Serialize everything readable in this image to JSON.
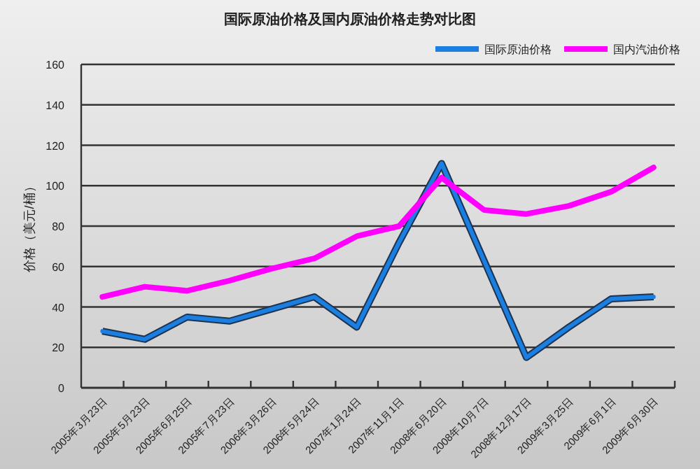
{
  "chart_data": {
    "type": "line",
    "title": "国际原油价格及国内原油价格走势对比图",
    "ylabel": "价格（美元/桶）",
    "categories": [
      "2005年3月23日",
      "2005年5月23日",
      "2005年6月25日",
      "2005年7月23日",
      "2006年3月26日",
      "2006年5月24日",
      "2007年1月24日",
      "2007年11月1日",
      "2008年6月20日",
      "2008年10月7日",
      "2008年12月17日",
      "2009年3月25日",
      "2009年6月1日",
      "2009年6月30日"
    ],
    "series": [
      {
        "name": "国际原油价格",
        "color": "#1a7fe0",
        "values": [
          28,
          24,
          35,
          33,
          39,
          45,
          30,
          72,
          111,
          63,
          15,
          30,
          44,
          45
        ]
      },
      {
        "name": "国内汽油价格",
        "color": "#ff00ff",
        "values": [
          45,
          50,
          48,
          53,
          59,
          64,
          75,
          80,
          104,
          88,
          86,
          90,
          97,
          109
        ]
      }
    ],
    "ylim": [
      0,
      160
    ],
    "yticks": [
      0,
      20,
      40,
      60,
      80,
      100,
      120,
      140,
      160
    ],
    "grid": "y",
    "legend": "top right"
  }
}
